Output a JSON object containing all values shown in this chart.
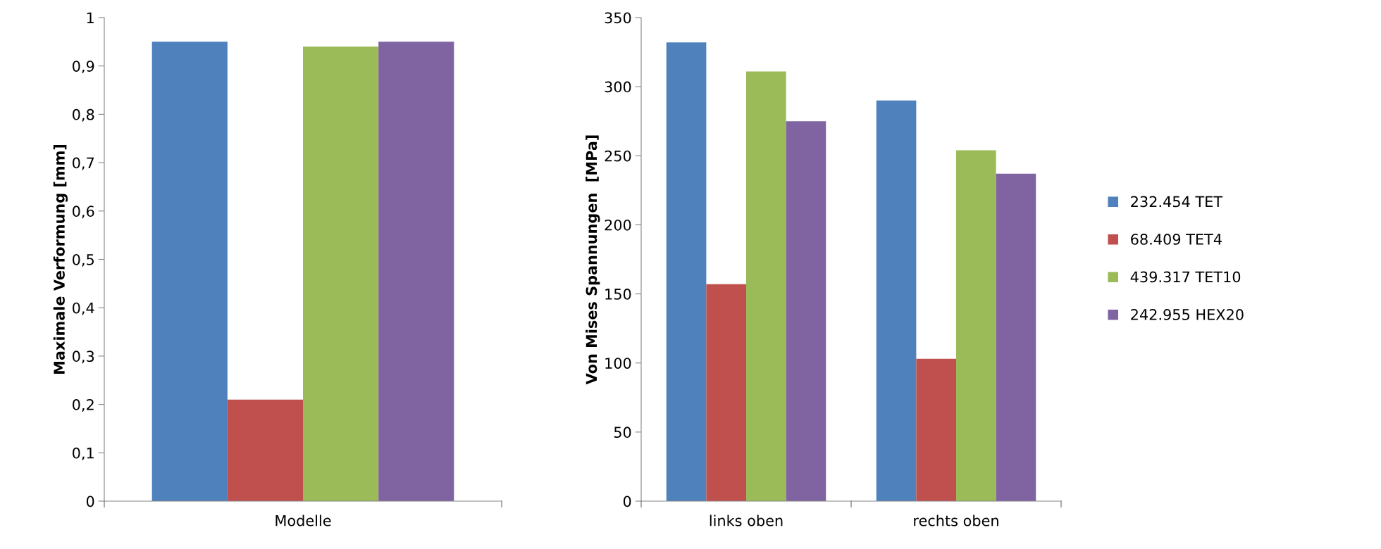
{
  "chart_data": [
    {
      "type": "bar",
      "ylabel": "Maximale Verformung [mm]",
      "categories": [
        "Modelle"
      ],
      "ylim": [
        0,
        1
      ],
      "yticks": [
        0,
        {
          "value": 0.1,
          "label": "0,1"
        },
        {
          "value": 0.2,
          "label": "0,2"
        },
        {
          "value": 0.3,
          "label": "0,3"
        },
        {
          "value": 0.4,
          "label": "0,4"
        },
        {
          "value": 0.5,
          "label": "0,5"
        },
        {
          "value": 0.6,
          "label": "0,6"
        },
        {
          "value": 0.7,
          "label": "0,7"
        },
        {
          "value": 0.8,
          "label": "0,8"
        },
        {
          "value": 0.9,
          "label": "0,9"
        },
        1
      ],
      "grid": false,
      "legend": false,
      "series": [
        {
          "color": "#4f81bd",
          "values": [
            0.95
          ]
        },
        {
          "color": "#c0504d",
          "values": [
            0.21
          ]
        },
        {
          "color": "#9bbb59",
          "values": [
            0.94
          ]
        },
        {
          "color": "#8064a2",
          "values": [
            0.95
          ]
        }
      ]
    },
    {
      "type": "bar",
      "ylabel": "Von Mises Spannungen  [MPa]",
      "categories": [
        "links oben",
        "rechts oben"
      ],
      "ylim": [
        0,
        350
      ],
      "yticks": [
        0,
        50,
        100,
        150,
        200,
        250,
        300,
        350
      ],
      "grid": false,
      "legend": "right",
      "series": [
        {
          "name": "232.454 TET",
          "color": "#4f81bd",
          "values": [
            332,
            290
          ]
        },
        {
          "name": "68.409 TET4",
          "color": "#c0504d",
          "values": [
            157,
            103
          ]
        },
        {
          "name": "439.317 TET10",
          "color": "#9bbb59",
          "values": [
            311,
            254
          ]
        },
        {
          "name": "242.955 HEX20",
          "color": "#8064a2",
          "values": [
            275,
            237
          ]
        }
      ]
    }
  ]
}
